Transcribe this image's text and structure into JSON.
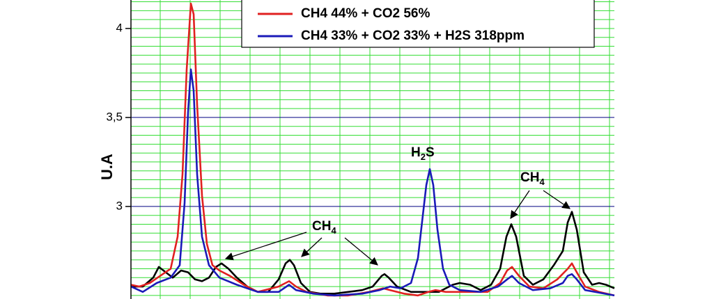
{
  "chart_data": {
    "type": "line",
    "ylabel": "U.A",
    "ylim": [
      2.48,
      4.16
    ],
    "yticks": [
      3,
      {
        "value": 3.5,
        "label": "3,5"
      },
      4
    ],
    "y_minor_grid": [
      2.5,
      2.55,
      2.6,
      2.65,
      2.7,
      2.75,
      2.8,
      2.85,
      2.9,
      2.95,
      3.05,
      3.1,
      3.15,
      3.2,
      3.25,
      3.3,
      3.35,
      3.4,
      3.45,
      3.55,
      3.6,
      3.65,
      3.7,
      3.75,
      3.8,
      3.85,
      3.9,
      3.95,
      4,
      4.05,
      4.1,
      4.15
    ],
    "xlim": [
      0,
      694
    ],
    "xgrid": [
      42,
      85,
      128,
      171,
      214,
      257,
      300,
      343,
      386,
      429,
      472,
      515,
      558,
      601,
      644,
      687
    ],
    "grid": true,
    "series": [
      {
        "color": "#000000",
        "x": [
          0,
          17,
          32,
          40,
          50,
          60,
          72,
          82,
          92,
          102,
          112,
          122,
          130,
          140,
          152,
          167,
          182,
          197,
          212,
          222,
          228,
          234,
          244,
          257,
          272,
          292,
          312,
          332,
          347,
          360,
          364,
          370,
          382,
          402,
          422,
          442,
          462,
          472,
          487,
          502,
          517,
          530,
          539,
          546,
          553,
          564,
          577,
          592,
          607,
          620,
          627,
          633,
          640,
          650,
          662,
          672,
          682,
          694
        ],
        "values": [
          2.55,
          2.55,
          2.6,
          2.66,
          2.63,
          2.6,
          2.64,
          2.63,
          2.59,
          2.58,
          2.6,
          2.66,
          2.68,
          2.65,
          2.6,
          2.55,
          2.52,
          2.52,
          2.59,
          2.68,
          2.7,
          2.67,
          2.57,
          2.52,
          2.51,
          2.51,
          2.52,
          2.53,
          2.55,
          2.61,
          2.62,
          2.6,
          2.55,
          2.52,
          2.52,
          2.52,
          2.56,
          2.57,
          2.56,
          2.53,
          2.56,
          2.65,
          2.83,
          2.9,
          2.83,
          2.61,
          2.56,
          2.59,
          2.67,
          2.75,
          2.91,
          2.97,
          2.87,
          2.63,
          2.56,
          2.57,
          2.56,
          2.54
        ]
      },
      {
        "name": "CH4 44% + CO2 56%",
        "color": "#e02020",
        "x": [
          0,
          12,
          27,
          42,
          57,
          67,
          74,
          80,
          86,
          90,
          95,
          102,
          109,
          117,
          127,
          142,
          162,
          182,
          212,
          227,
          237,
          252,
          282,
          312,
          342,
          362,
          372,
          392,
          412,
          427,
          437,
          452,
          482,
          512,
          530,
          540,
          547,
          557,
          572,
          592,
          612,
          627,
          633,
          640,
          652,
          672,
          694
        ],
        "values": [
          2.56,
          2.55,
          2.57,
          2.61,
          2.65,
          2.83,
          3.18,
          3.77,
          4.14,
          4.08,
          3.57,
          3.06,
          2.79,
          2.67,
          2.64,
          2.61,
          2.56,
          2.52,
          2.55,
          2.58,
          2.55,
          2.52,
          2.5,
          2.5,
          2.52,
          2.54,
          2.53,
          2.51,
          2.5,
          2.52,
          2.53,
          2.52,
          2.52,
          2.52,
          2.57,
          2.64,
          2.66,
          2.61,
          2.55,
          2.54,
          2.59,
          2.65,
          2.68,
          2.63,
          2.55,
          2.52,
          2.5
        ]
      },
      {
        "name": "CH4 33% + CO2 33% + H2S 318ppm",
        "color": "#1a1ab8",
        "x": [
          0,
          17,
          37,
          57,
          70,
          77,
          82,
          86,
          90,
          95,
          102,
          112,
          127,
          152,
          182,
          212,
          227,
          237,
          262,
          292,
          332,
          357,
          372,
          387,
          402,
          412,
          419,
          424,
          429,
          434,
          440,
          448,
          457,
          472,
          502,
          527,
          540,
          547,
          557,
          577,
          602,
          620,
          627,
          633,
          640,
          652,
          694
        ],
        "values": [
          2.55,
          2.52,
          2.57,
          2.6,
          2.67,
          3.02,
          3.53,
          3.77,
          3.65,
          3.18,
          2.83,
          2.67,
          2.6,
          2.56,
          2.52,
          2.52,
          2.56,
          2.53,
          2.51,
          2.5,
          2.51,
          2.53,
          2.55,
          2.54,
          2.57,
          2.71,
          2.95,
          3.12,
          3.21,
          3.12,
          2.87,
          2.65,
          2.56,
          2.53,
          2.52,
          2.55,
          2.59,
          2.61,
          2.57,
          2.53,
          2.54,
          2.57,
          2.61,
          2.62,
          2.59,
          2.53,
          2.5
        ]
      }
    ],
    "annotations": [
      {
        "label": "H",
        "sub": "2",
        "suffix": "S"
      },
      {
        "label": "CH",
        "sub": "4"
      },
      {
        "label": "CH",
        "sub": "4"
      }
    ]
  }
}
